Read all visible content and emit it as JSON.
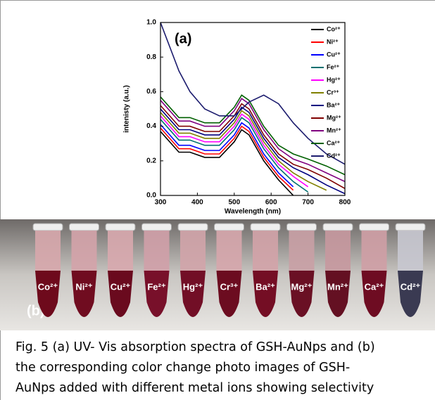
{
  "chart_data": {
    "type": "line",
    "annotation": "(a)",
    "xlabel": "Wavelength (nm)",
    "ylabel": "intenisty (a.u.)",
    "x": [
      300,
      350,
      380,
      420,
      460,
      500,
      520,
      540,
      580,
      620,
      660,
      700,
      750,
      800
    ],
    "xlim": [
      300,
      800
    ],
    "xticks": [
      300,
      400,
      500,
      600,
      700,
      800
    ],
    "ylim": [
      0,
      1
    ],
    "yticks": [
      {
        "value": 0,
        "label": "0.0"
      },
      0.2,
      0.4,
      0.6,
      0.8,
      {
        "value": 1,
        "label": "1.0"
      }
    ],
    "legend": "upper right",
    "series": [
      {
        "name": "Co²⁺",
        "color": "#000000",
        "values": [
          0.37,
          0.25,
          0.25,
          0.22,
          0.22,
          0.31,
          0.38,
          0.35,
          0.2,
          0.09,
          0,
          null,
          null,
          null
        ]
      },
      {
        "name": "Ni²⁺",
        "color": "#ff0000",
        "values": [
          0.39,
          0.27,
          0.27,
          0.24,
          0.24,
          0.33,
          0.4,
          0.37,
          0.22,
          0.11,
          0.03,
          null,
          null,
          null
        ]
      },
      {
        "name": "Cu²⁺",
        "color": "#0000ff",
        "values": [
          0.41,
          0.29,
          0.29,
          0.26,
          0.26,
          0.35,
          0.42,
          0.39,
          0.24,
          0.13,
          0.05,
          null,
          null,
          null
        ]
      },
      {
        "name": "Fe²⁺",
        "color": "#007070",
        "values": [
          0.44,
          0.32,
          0.32,
          0.29,
          0.29,
          0.38,
          0.45,
          0.42,
          0.27,
          0.16,
          0.08,
          0.02,
          null,
          null
        ]
      },
      {
        "name": "Hg²⁺",
        "color": "#ff00ff",
        "values": [
          0.46,
          0.34,
          0.34,
          0.31,
          0.31,
          0.4,
          0.47,
          0.44,
          0.29,
          0.18,
          0.11,
          0.05,
          null,
          null
        ]
      },
      {
        "name": "Cr³⁺",
        "color": "#808000",
        "values": [
          0.48,
          0.36,
          0.36,
          0.33,
          0.33,
          0.42,
          0.49,
          0.46,
          0.31,
          0.2,
          0.13,
          0.08,
          0.03,
          null
        ]
      },
      {
        "name": "Ba²⁺",
        "color": "#000080",
        "values": [
          0.5,
          0.38,
          0.38,
          0.35,
          0.35,
          0.44,
          0.51,
          0.48,
          0.33,
          0.22,
          0.16,
          0.12,
          0.06,
          0.01
        ]
      },
      {
        "name": "Mg²⁺",
        "color": "#800000",
        "values": [
          0.52,
          0.4,
          0.4,
          0.37,
          0.37,
          0.46,
          0.53,
          0.5,
          0.35,
          0.24,
          0.18,
          0.15,
          0.1,
          0.04
        ]
      },
      {
        "name": "Mn²⁺",
        "color": "#800080",
        "values": [
          0.55,
          0.43,
          0.43,
          0.4,
          0.4,
          0.49,
          0.56,
          0.53,
          0.38,
          0.27,
          0.21,
          0.18,
          0.13,
          0.08
        ]
      },
      {
        "name": "Ca²⁺",
        "color": "#006000",
        "values": [
          0.57,
          0.45,
          0.45,
          0.42,
          0.42,
          0.51,
          0.58,
          0.55,
          0.4,
          0.29,
          0.24,
          0.21,
          0.17,
          0.12
        ]
      },
      {
        "name": "Cd²⁺",
        "color": "#1c1c6e",
        "values": [
          1.0,
          0.72,
          0.6,
          0.5,
          0.46,
          0.46,
          0.5,
          0.54,
          0.58,
          0.53,
          0.42,
          0.33,
          0.24,
          0.18
        ]
      }
    ]
  },
  "photo": {
    "panel": "(b)",
    "labels": [
      "Co²⁺",
      "Ni²⁺",
      "Cu²⁺",
      "Fe²⁺",
      "Hg²⁺",
      "Cr³⁺",
      "Ba²⁺",
      "Mg²⁺",
      "Mn²⁺",
      "Ca²⁺",
      "Cd²⁺"
    ]
  },
  "caption": [
    "Fig. 5 (a) UV- Vis absorption spectra of GSH-AuNps and (b)",
    "the corresponding color change photo images of GSH-",
    "AuNps added with different metal ions showing selectivity"
  ]
}
